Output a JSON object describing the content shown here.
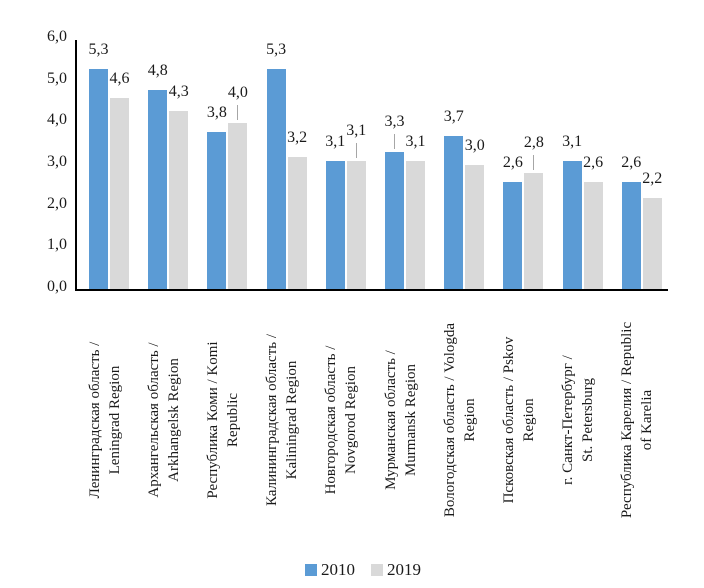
{
  "chart_data": {
    "type": "bar",
    "title": "",
    "xlabel": "",
    "ylabel": "",
    "ylim": [
      0,
      6
    ],
    "ytick_step": 1.0,
    "ytick_labels": [
      "0,0",
      "1,0",
      "2,0",
      "3,0",
      "4,0",
      "5,0",
      "6,0"
    ],
    "decimal_separator": ",",
    "grid": false,
    "legend_position": "bottom",
    "data_labels": true,
    "axis_color": "#000000",
    "leader_line_color": "#a6a6a6",
    "categories": [
      {
        "label": "Ленинградская область / Leningrad Region",
        "lines": [
          "Ленинградская область /",
          "Leningrad Region"
        ]
      },
      {
        "label": "Архангельская область / Arkhangelsk Region",
        "lines": [
          "Архангельская область /",
          "Arkhangelsk Region"
        ]
      },
      {
        "label": "Республика Коми / Komi Republic",
        "lines": [
          "Республика Коми / Komi",
          "Republic"
        ]
      },
      {
        "label": "Калининградская область / Kaliningrad Region",
        "lines": [
          "Калининградская область /",
          "Kaliningrad Region"
        ]
      },
      {
        "label": "Новгородская область / Novgorod Region",
        "lines": [
          "Новгородская область /",
          "Novgorod Region"
        ]
      },
      {
        "label": "Мурманская область / Murmansk Region",
        "lines": [
          "Мурманская область /",
          "Murmansk Region"
        ]
      },
      {
        "label": "Вологодская область / Vologda Region",
        "lines": [
          "Вологодская область / Vologda",
          "Region"
        ]
      },
      {
        "label": "Псковская область / Pskov Region",
        "lines": [
          "Псковская область / Pskov",
          "Region"
        ]
      },
      {
        "label": "г. Санкт-Петербург / St. Petersburg",
        "lines": [
          "г. Санкт-Петербург /",
          "St. Petersburg"
        ]
      },
      {
        "label": "Республика Карелия / Republic of Karelia",
        "lines": [
          "Республика Карелия / Republic",
          "of Karelia"
        ]
      }
    ],
    "series": [
      {
        "name": "2010",
        "color": "#5b9bd5",
        "values": [
          5.3,
          4.8,
          3.8,
          5.3,
          3.1,
          3.3,
          3.7,
          2.6,
          3.1,
          2.6
        ]
      },
      {
        "name": "2019",
        "color": "#d9d9d9",
        "values": [
          4.6,
          4.3,
          4.0,
          3.2,
          3.1,
          3.1,
          3.0,
          2.8,
          2.6,
          2.2
        ]
      }
    ],
    "label_leaders": [
      [
        2,
        1
      ],
      [
        4,
        1
      ],
      [
        5,
        0
      ],
      [
        7,
        1
      ]
    ]
  },
  "legend": {
    "items": [
      {
        "label": "2010",
        "color": "#5b9bd5"
      },
      {
        "label": "2019",
        "color": "#d9d9d9"
      }
    ]
  }
}
